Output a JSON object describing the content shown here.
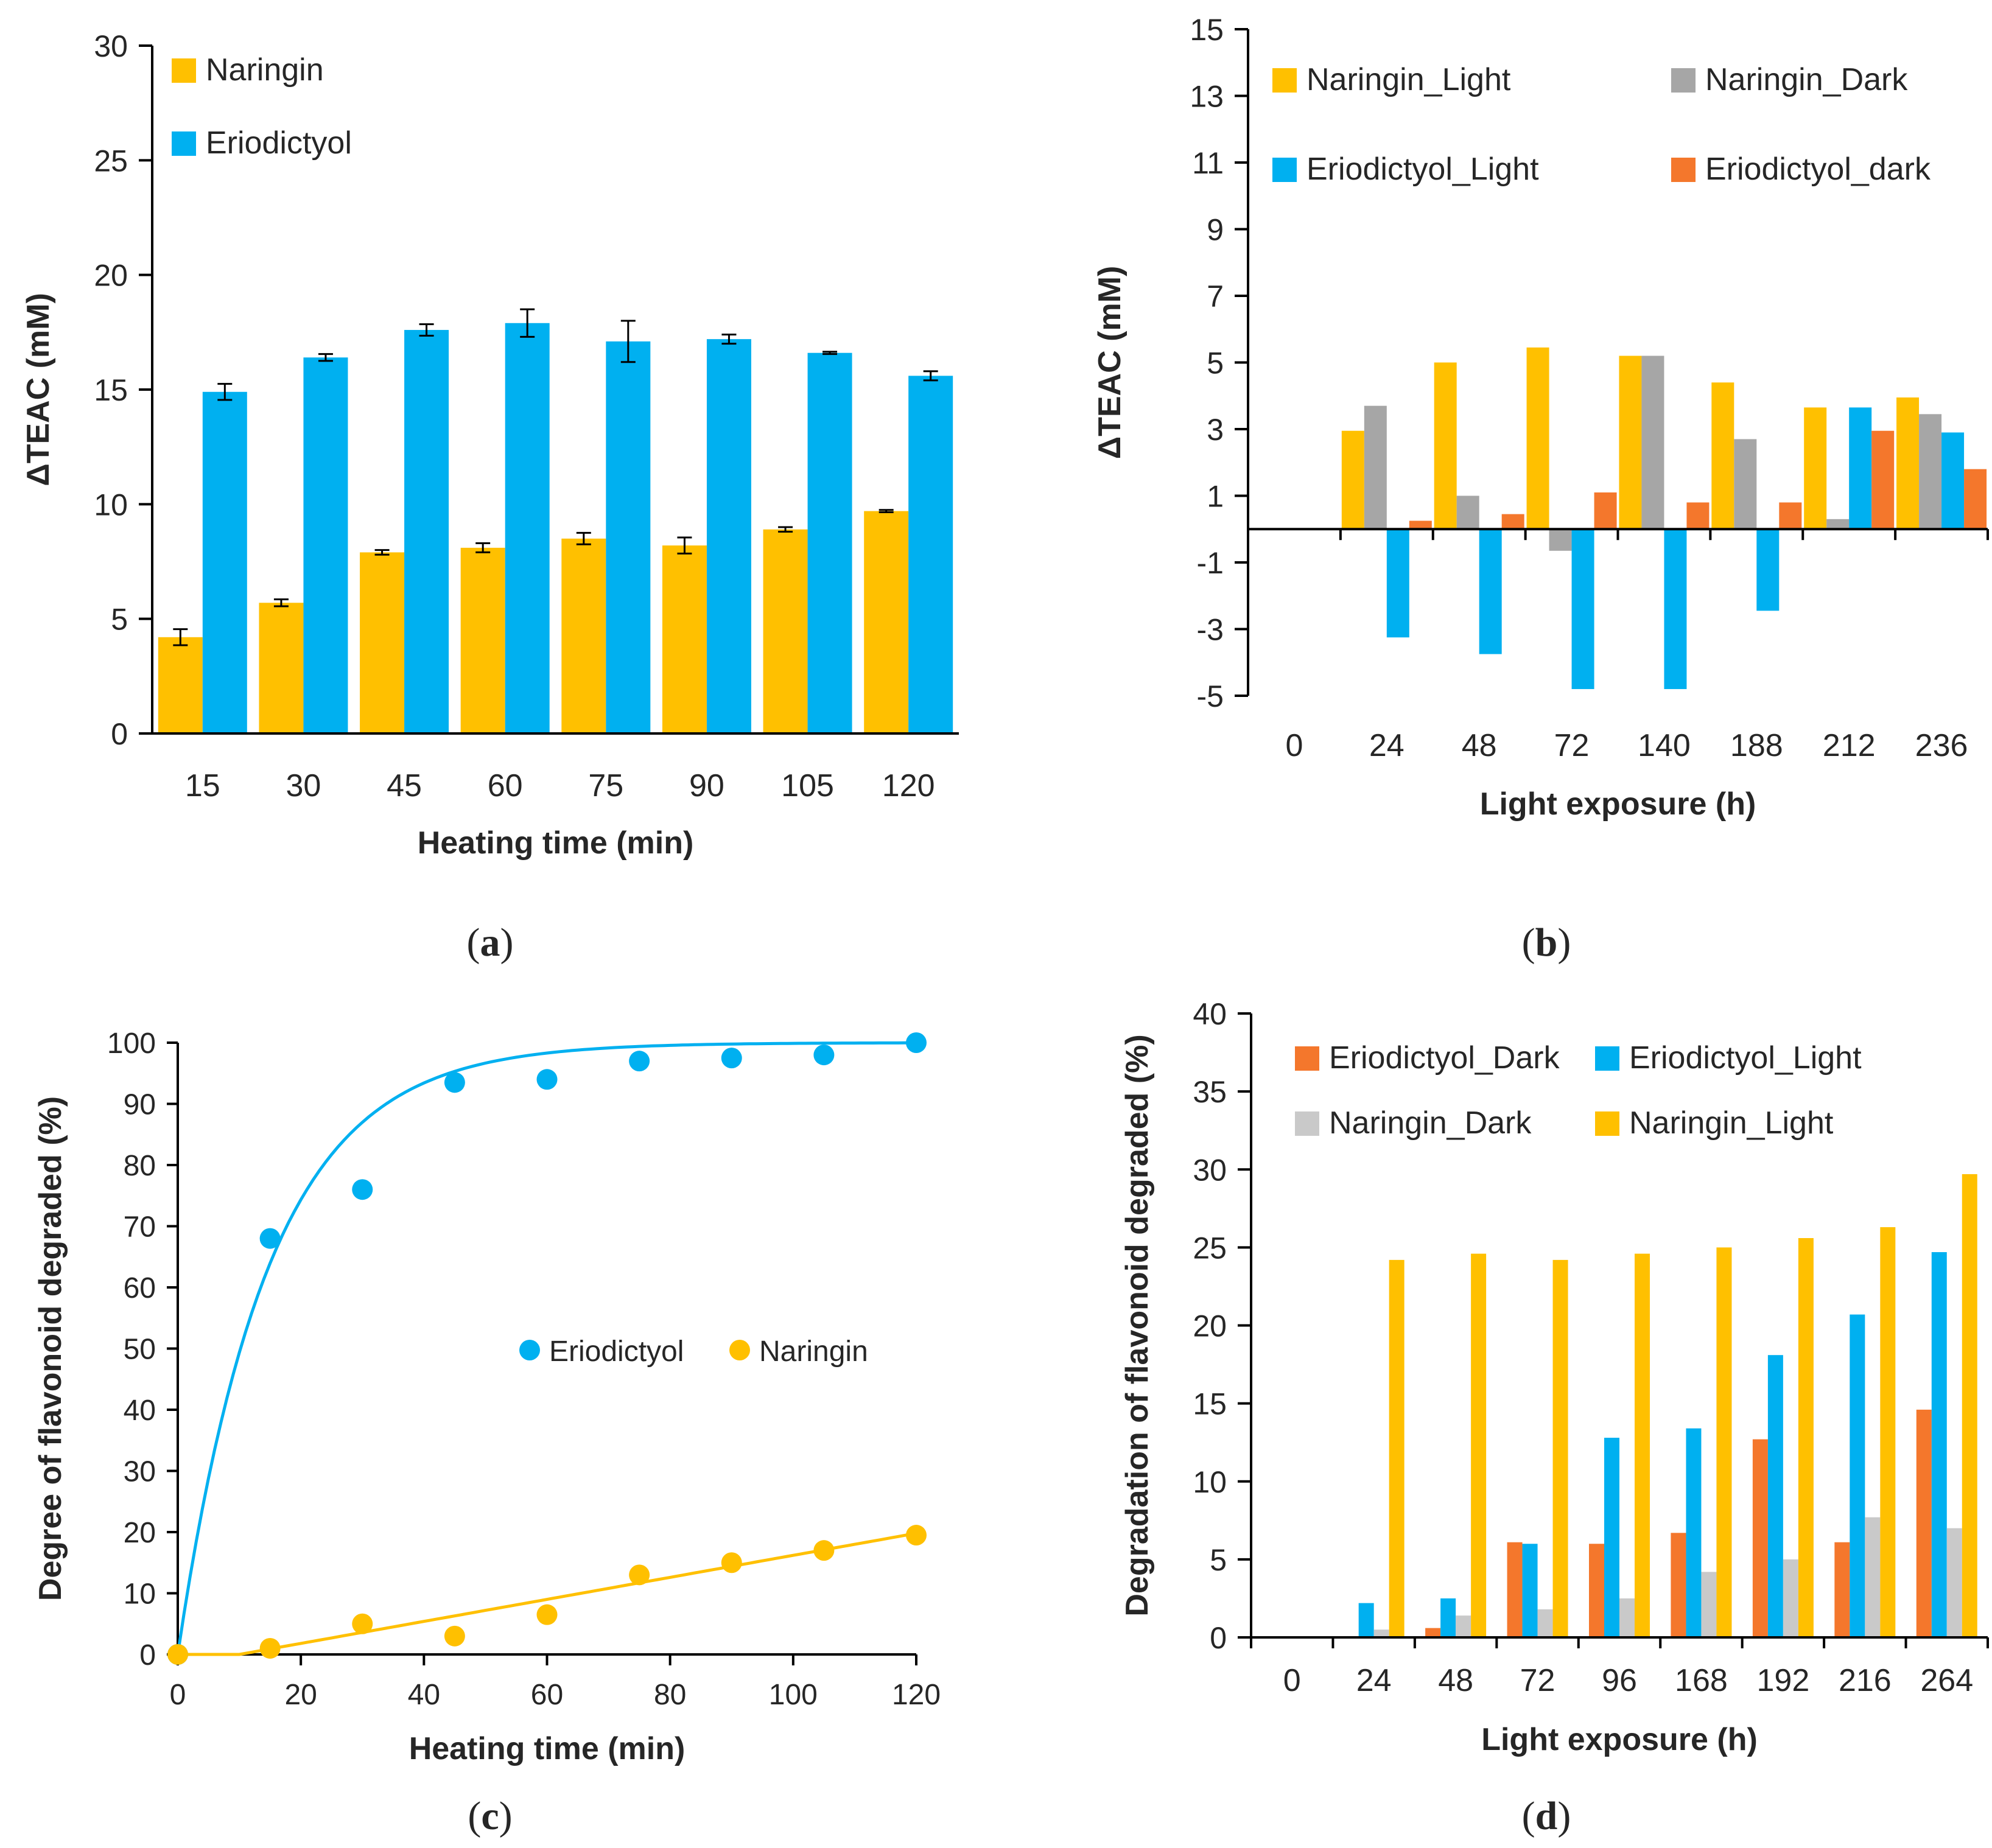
{
  "colors": {
    "naringin": "#FFC000",
    "eriodictyol": "#00B0F0",
    "gray": "#A6A6A6",
    "lightgray": "#C9C9C9",
    "orange": "#F4772C",
    "axis": "#000000"
  },
  "panels": [
    {
      "open": "(",
      "letter": "a",
      "close": ")"
    },
    {
      "open": "(",
      "letter": "b",
      "close": ")"
    },
    {
      "open": "(",
      "letter": "c",
      "close": ")"
    },
    {
      "open": "(",
      "letter": "d",
      "close": ")"
    }
  ],
  "chart_data": [
    {
      "id": "a",
      "type": "bar",
      "title": "",
      "xlabel": "Heating time (min)",
      "ylabel": "ΔTEAC (mM)",
      "ylim": [
        0,
        30
      ],
      "yticks": [
        0,
        5,
        10,
        15,
        20,
        25,
        30
      ],
      "categories": [
        "15",
        "30",
        "45",
        "60",
        "75",
        "90",
        "105",
        "120"
      ],
      "legend_position": "top-left",
      "series": [
        {
          "name": "Naringin",
          "color": "#FFC000",
          "values": [
            4.2,
            5.7,
            7.9,
            8.1,
            8.5,
            8.2,
            8.9,
            9.7
          ],
          "errors": [
            0.35,
            0.15,
            0.1,
            0.2,
            0.25,
            0.35,
            0.1,
            0.05
          ]
        },
        {
          "name": "Eriodictyol",
          "color": "#00B0F0",
          "values": [
            14.9,
            16.4,
            17.6,
            17.9,
            17.1,
            17.2,
            16.6,
            15.6
          ],
          "errors": [
            0.35,
            0.15,
            0.25,
            0.6,
            0.9,
            0.2,
            0.05,
            0.2
          ]
        }
      ]
    },
    {
      "id": "b",
      "type": "bar",
      "title": "",
      "xlabel": "Light exposure (h)",
      "ylabel": "ΔTEAC (mM)",
      "ylim": [
        -5,
        15
      ],
      "yticks": [
        -5,
        -3,
        -1,
        1,
        3,
        5,
        7,
        9,
        11,
        13,
        15
      ],
      "categories": [
        "0",
        "24",
        "48",
        "72",
        "140",
        "188",
        "212",
        "236"
      ],
      "legend_position": "top",
      "series": [
        {
          "name": "Naringin_Light",
          "color": "#FFC000",
          "values": [
            0,
            2.95,
            5.0,
            5.45,
            5.2,
            4.4,
            3.65,
            3.95
          ]
        },
        {
          "name": "Naringin_Dark",
          "color": "#A6A6A6",
          "values": [
            0,
            3.7,
            1.0,
            -0.65,
            5.2,
            2.7,
            0.3,
            3.45
          ]
        },
        {
          "name": "Eriodictyol_Light",
          "color": "#00B0F0",
          "values": [
            0,
            -3.25,
            -3.75,
            -4.8,
            -4.8,
            -2.45,
            3.65,
            2.9
          ]
        },
        {
          "name": "Eriodictyol_dark",
          "color": "#F4772C",
          "values": [
            0,
            0.25,
            0.45,
            1.1,
            0.8,
            0.8,
            2.95,
            1.8
          ]
        }
      ]
    },
    {
      "id": "c",
      "type": "scatter",
      "title": "",
      "xlabel": "Heating time (min)",
      "ylabel": "Degree of flavonoid degraded (%)",
      "xlim": [
        0,
        120
      ],
      "ylim": [
        0,
        100
      ],
      "xticks": [
        0,
        20,
        40,
        60,
        80,
        100,
        120
      ],
      "yticks": [
        0,
        10,
        20,
        30,
        40,
        50,
        60,
        70,
        80,
        90,
        100
      ],
      "legend_position": "center-right",
      "series": [
        {
          "name": "Eriodictyol",
          "color": "#00B0F0",
          "x": [
            0,
            15,
            30,
            45,
            60,
            75,
            90,
            105,
            120
          ],
          "y": [
            0,
            68,
            76,
            93.5,
            94,
            97,
            97.5,
            98,
            100
          ],
          "fit": "first-order",
          "fit_params": {
            "a": 100,
            "k": 0.068
          }
        },
        {
          "name": "Naringin",
          "color": "#FFC000",
          "x": [
            0,
            15,
            30,
            45,
            60,
            75,
            90,
            105,
            120
          ],
          "y": [
            0,
            1,
            5,
            3,
            6.5,
            13,
            15,
            17,
            19.5
          ],
          "fit": "linear",
          "fit_params": {
            "x0": 10,
            "slope": 0.18
          }
        }
      ]
    },
    {
      "id": "d",
      "type": "bar",
      "title": "",
      "xlabel": "Light exposure (h)",
      "ylabel": "Degradation of flavonoid degraded (%)",
      "ylim": [
        0,
        40
      ],
      "yticks": [
        0,
        5,
        10,
        15,
        20,
        25,
        30,
        35,
        40
      ],
      "categories": [
        "0",
        "24",
        "48",
        "72",
        "96",
        "168",
        "192",
        "216",
        "264"
      ],
      "legend_position": "top",
      "series": [
        {
          "name": "Eriodictyol_Dark",
          "color": "#F4772C",
          "values": [
            0,
            0,
            0.6,
            6.1,
            6.0,
            6.7,
            12.7,
            6.1,
            14.6
          ]
        },
        {
          "name": "Eriodictyol_Light",
          "color": "#00B0F0",
          "values": [
            0,
            2.2,
            2.5,
            6.0,
            12.8,
            13.4,
            18.1,
            20.7,
            24.7
          ]
        },
        {
          "name": "Naringin_Dark",
          "color": "#C9C9C9",
          "values": [
            0,
            0.5,
            1.4,
            1.8,
            2.5,
            4.2,
            5.0,
            7.7,
            7.0
          ]
        },
        {
          "name": "Naringin_Light",
          "color": "#FFC000",
          "values": [
            0,
            24.2,
            24.6,
            24.2,
            24.6,
            25.0,
            25.6,
            26.3,
            29.7
          ]
        }
      ]
    }
  ]
}
